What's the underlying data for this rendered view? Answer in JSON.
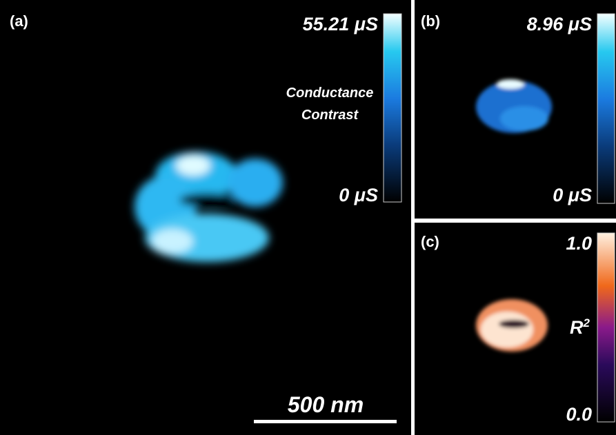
{
  "panels": [
    {
      "label": "(a)",
      "colorbar": {
        "max": "55.21 μS",
        "min": "0 μS",
        "title": [
          "Conductance",
          "Contrast"
        ]
      },
      "scale_bar": "500 nm"
    },
    {
      "label": "(b)",
      "colorbar": {
        "max": "8.96 μS",
        "min": "0 μS"
      }
    },
    {
      "label": "(c)",
      "colorbar": {
        "max": "1.0",
        "min": "0.0",
        "title": "R",
        "title_sup": "2"
      }
    }
  ]
}
